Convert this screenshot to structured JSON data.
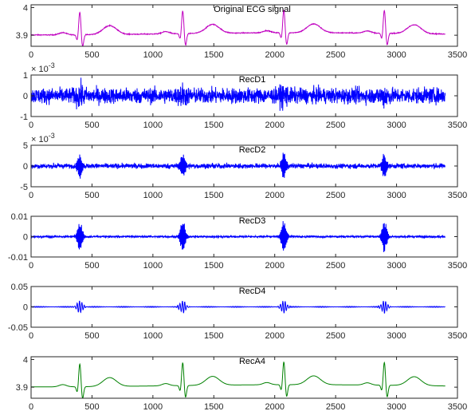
{
  "chart_data": [
    {
      "type": "line",
      "title": "Original ECG signal",
      "color": "#c000c0",
      "xlim": [
        0,
        3500
      ],
      "xticks": [
        0,
        500,
        1000,
        1500,
        2000,
        2500,
        3000,
        3500
      ],
      "xtick_labels": [
        "0",
        "500",
        "1000",
        "1500",
        "2000",
        "2500",
        "3000",
        "3500"
      ],
      "ylim": [
        3.86,
        4.01
      ],
      "yticks": [
        3.9,
        4
      ],
      "ytick_labels": [
        "3.9",
        "4"
      ],
      "exponent": "",
      "x_range": [
        0,
        3400
      ],
      "signal_model": "ecg",
      "noise": 0.0015
    },
    {
      "type": "line",
      "title": "RecD1",
      "color": "#0000ff",
      "xlim": [
        0,
        3500
      ],
      "xticks": [
        0,
        500,
        1000,
        1500,
        2000,
        2500,
        3000,
        3500
      ],
      "xtick_labels": [
        "0",
        "500",
        "1000",
        "1500",
        "2000",
        "2500",
        "3000",
        "3500"
      ],
      "ylim": [
        -1,
        1
      ],
      "yticks": [
        -1,
        0,
        1
      ],
      "ytick_labels": [
        "-1",
        "0",
        "1"
      ],
      "exponent": "× 10^-3",
      "x_range": [
        0,
        3400
      ],
      "signal_model": "noise",
      "amplitude": 0.45
    },
    {
      "type": "line",
      "title": "RecD2",
      "color": "#0000ff",
      "xlim": [
        0,
        3500
      ],
      "xticks": [
        0,
        500,
        1000,
        1500,
        2000,
        2500,
        3000,
        3500
      ],
      "xtick_labels": [
        "0",
        "500",
        "1000",
        "1500",
        "2000",
        "2500",
        "3000",
        "3500"
      ],
      "ylim": [
        -5,
        5
      ],
      "yticks": [
        -5,
        0,
        5
      ],
      "ytick_labels": [
        "-5",
        "0",
        "5"
      ],
      "exponent": "× 10^-3",
      "x_range": [
        0,
        3400
      ],
      "signal_model": "bursty",
      "amplitude": 0.8,
      "burst": 3.2
    },
    {
      "type": "line",
      "title": "RecD3",
      "color": "#0000ff",
      "xlim": [
        0,
        3500
      ],
      "xticks": [
        0,
        500,
        1000,
        1500,
        2000,
        2500,
        3000,
        3500
      ],
      "xtick_labels": [
        "0",
        "500",
        "1000",
        "1500",
        "2000",
        "2500",
        "3000",
        "3500"
      ],
      "ylim": [
        -0.01,
        0.01
      ],
      "yticks": [
        -0.01,
        0,
        0.01
      ],
      "ytick_labels": [
        "-0.01",
        "0",
        "0.01"
      ],
      "exponent": "",
      "x_range": [
        0,
        3400
      ],
      "signal_model": "bursty",
      "amplitude": 0.0006,
      "burst": 0.0085
    },
    {
      "type": "line",
      "title": "RecD4",
      "color": "#0000ff",
      "xlim": [
        0,
        3500
      ],
      "xticks": [
        0,
        500,
        1000,
        1500,
        2000,
        2500,
        3000,
        3500
      ],
      "xtick_labels": [
        "0",
        "500",
        "1000",
        "1500",
        "2000",
        "2500",
        "3000",
        "3500"
      ],
      "ylim": [
        -0.05,
        0.05
      ],
      "yticks": [
        -0.05,
        0,
        0.05
      ],
      "ytick_labels": [
        "-0.05",
        "0",
        "0.05"
      ],
      "exponent": "",
      "x_range": [
        0,
        3400
      ],
      "signal_model": "oscillation",
      "amplitude": 0.0015,
      "burst": 0.015
    },
    {
      "type": "line",
      "title": "RecA4",
      "color": "#008000",
      "xlim": [
        0,
        3500
      ],
      "xticks": [
        0,
        500,
        1000,
        1500,
        2000,
        2500,
        3000,
        3500
      ],
      "xtick_labels": [
        "0",
        "500",
        "1000",
        "1500",
        "2000",
        "2500",
        "3000",
        "3500"
      ],
      "ylim": [
        3.86,
        4.01
      ],
      "yticks": [
        3.9,
        4
      ],
      "ytick_labels": [
        "3.9",
        "4"
      ],
      "exponent": "",
      "x_range": [
        0,
        3400
      ],
      "signal_model": "ecg",
      "noise": 0.0
    }
  ],
  "r_peaks": [
    400,
    1245,
    2075,
    2900
  ]
}
